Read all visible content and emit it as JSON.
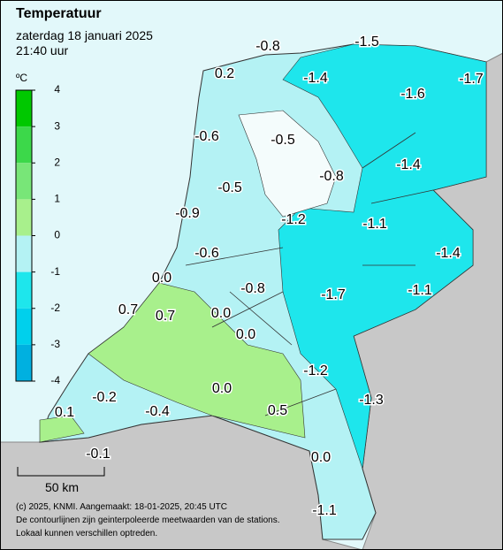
{
  "header": {
    "title": "Temperatuur",
    "date": "zaterdag 18 januari 2025",
    "time": "21:40 uur"
  },
  "legend": {
    "unit": "ºC",
    "ticks": [
      4,
      3,
      2,
      1,
      0,
      -1,
      -2,
      -3,
      -4
    ],
    "colors": [
      "#00c800",
      "#3cd84a",
      "#78e678",
      "#a8f08c",
      "#b4f2f4",
      "#1ee6ec",
      "#00d0ec",
      "#00b0e0"
    ]
  },
  "stations": [
    "-0.8",
    "-1.5",
    "0.2",
    "-1.4",
    "-1.6",
    "-1.7",
    "-0.6",
    "-0.5",
    "-1.4",
    "-0.8",
    "-0.5",
    "-0.9",
    "-1.2",
    "-1.1",
    "-0.6",
    "-1.4",
    "0.0",
    "-0.8",
    "-1.7",
    "-1.1",
    "0.7",
    "0.7",
    "0.0",
    "0.0",
    "-1.2",
    "0.0",
    "-0.2",
    "-1.3",
    "0.1",
    "-0.4",
    "0.5",
    "-0.1",
    "0.0",
    "-1.1"
  ],
  "scale_bar": "50 km",
  "footer": [
    "(c) 2025, KNMI. Aangemaakt: 18-01-2025, 20:45 UTC",
    "De contourlijnen zijn geinterpoleerde meetwaarden van de stations.",
    "Lokaal kunnen verschillen optreden."
  ]
}
